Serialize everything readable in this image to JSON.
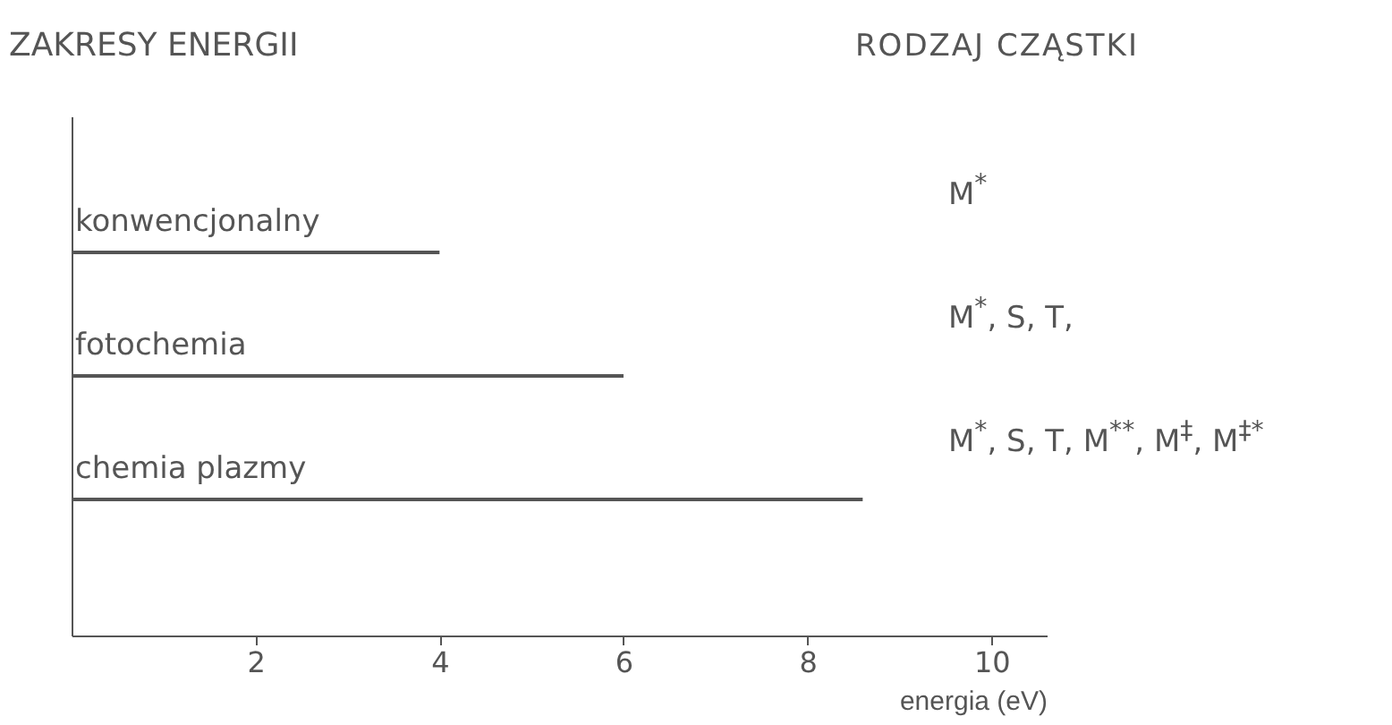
{
  "chart_data": {
    "type": "bar",
    "orientation": "horizontal",
    "title": "ZAKRESY ENERGII",
    "xlabel": "energia (eV)",
    "categories": [
      "konwencjonalny",
      "fotochemia",
      "chemia plazmy"
    ],
    "values": [
      4,
      6,
      8.6
    ],
    "color": "#555555",
    "xlim": [
      0,
      10.6
    ],
    "xticks": [
      2,
      4,
      6,
      8,
      10
    ],
    "grid": false,
    "annotations": [
      "RODZAJ CZĄSTKI",
      "M$^{*}$",
      "M$^{*}$, S, T,",
      "M$^{*}$, S, T, M$^{**}$, M$^{‡}$, M$^{‡*}$"
    ]
  }
}
